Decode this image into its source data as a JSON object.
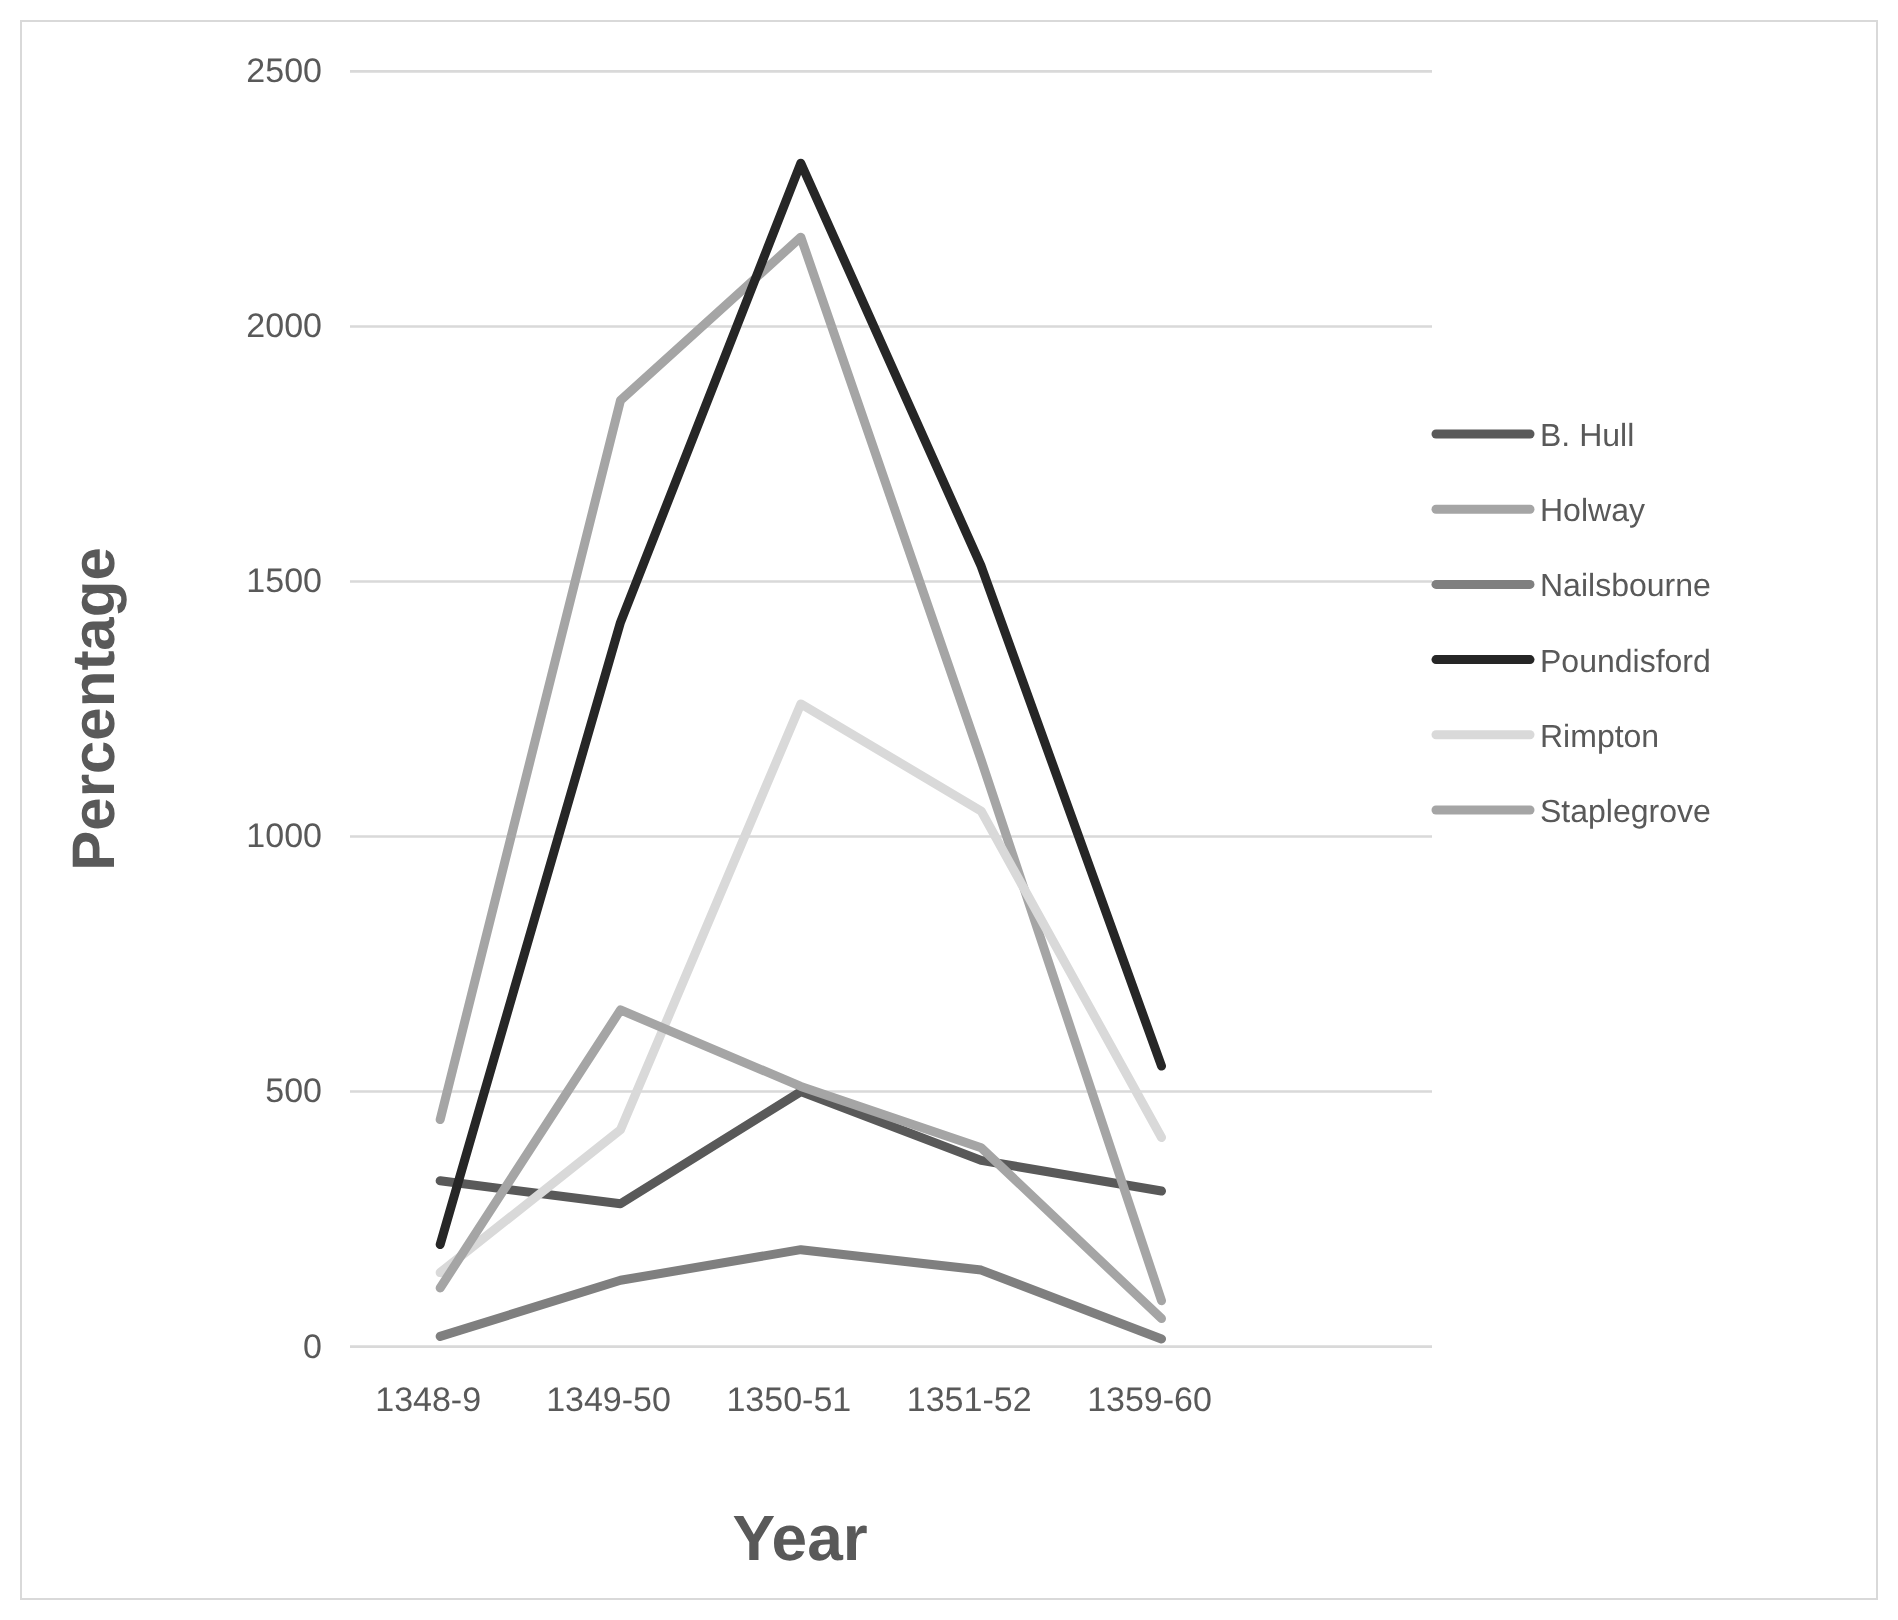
{
  "chart_data": {
    "type": "line",
    "xlabel": "Year",
    "ylabel": "Percentage",
    "categories": [
      "1348-9",
      "1349-50",
      "1350-51",
      "1351-52",
      "1359-60",
      null
    ],
    "series": [
      {
        "name": "B. Hull",
        "color": "#595959",
        "values": [
          325,
          280,
          500,
          365,
          305,
          null
        ]
      },
      {
        "name": "Holway",
        "color": "#a5a5a5",
        "values": [
          445,
          1855,
          2175,
          1150,
          90,
          null
        ]
      },
      {
        "name": "Nailsbourne",
        "color": "#7f7f7f",
        "values": [
          20,
          130,
          190,
          150,
          15,
          null
        ]
      },
      {
        "name": "Poundisford",
        "color": "#262626",
        "values": [
          200,
          1420,
          2320,
          1530,
          550,
          null
        ]
      },
      {
        "name": "Rimpton",
        "color": "#d9d9d9",
        "values": [
          145,
          425,
          1260,
          1050,
          410,
          null
        ]
      },
      {
        "name": "Staplegrove",
        "color": "#a5a5a5",
        "values": [
          115,
          660,
          510,
          390,
          55,
          null
        ]
      }
    ],
    "ylim": [
      0,
      2500
    ],
    "yticks": [
      0,
      500,
      1000,
      1500,
      2000,
      2500
    ],
    "grid": "y",
    "legend": "right",
    "marker": "none",
    "line_style": "solid"
  }
}
